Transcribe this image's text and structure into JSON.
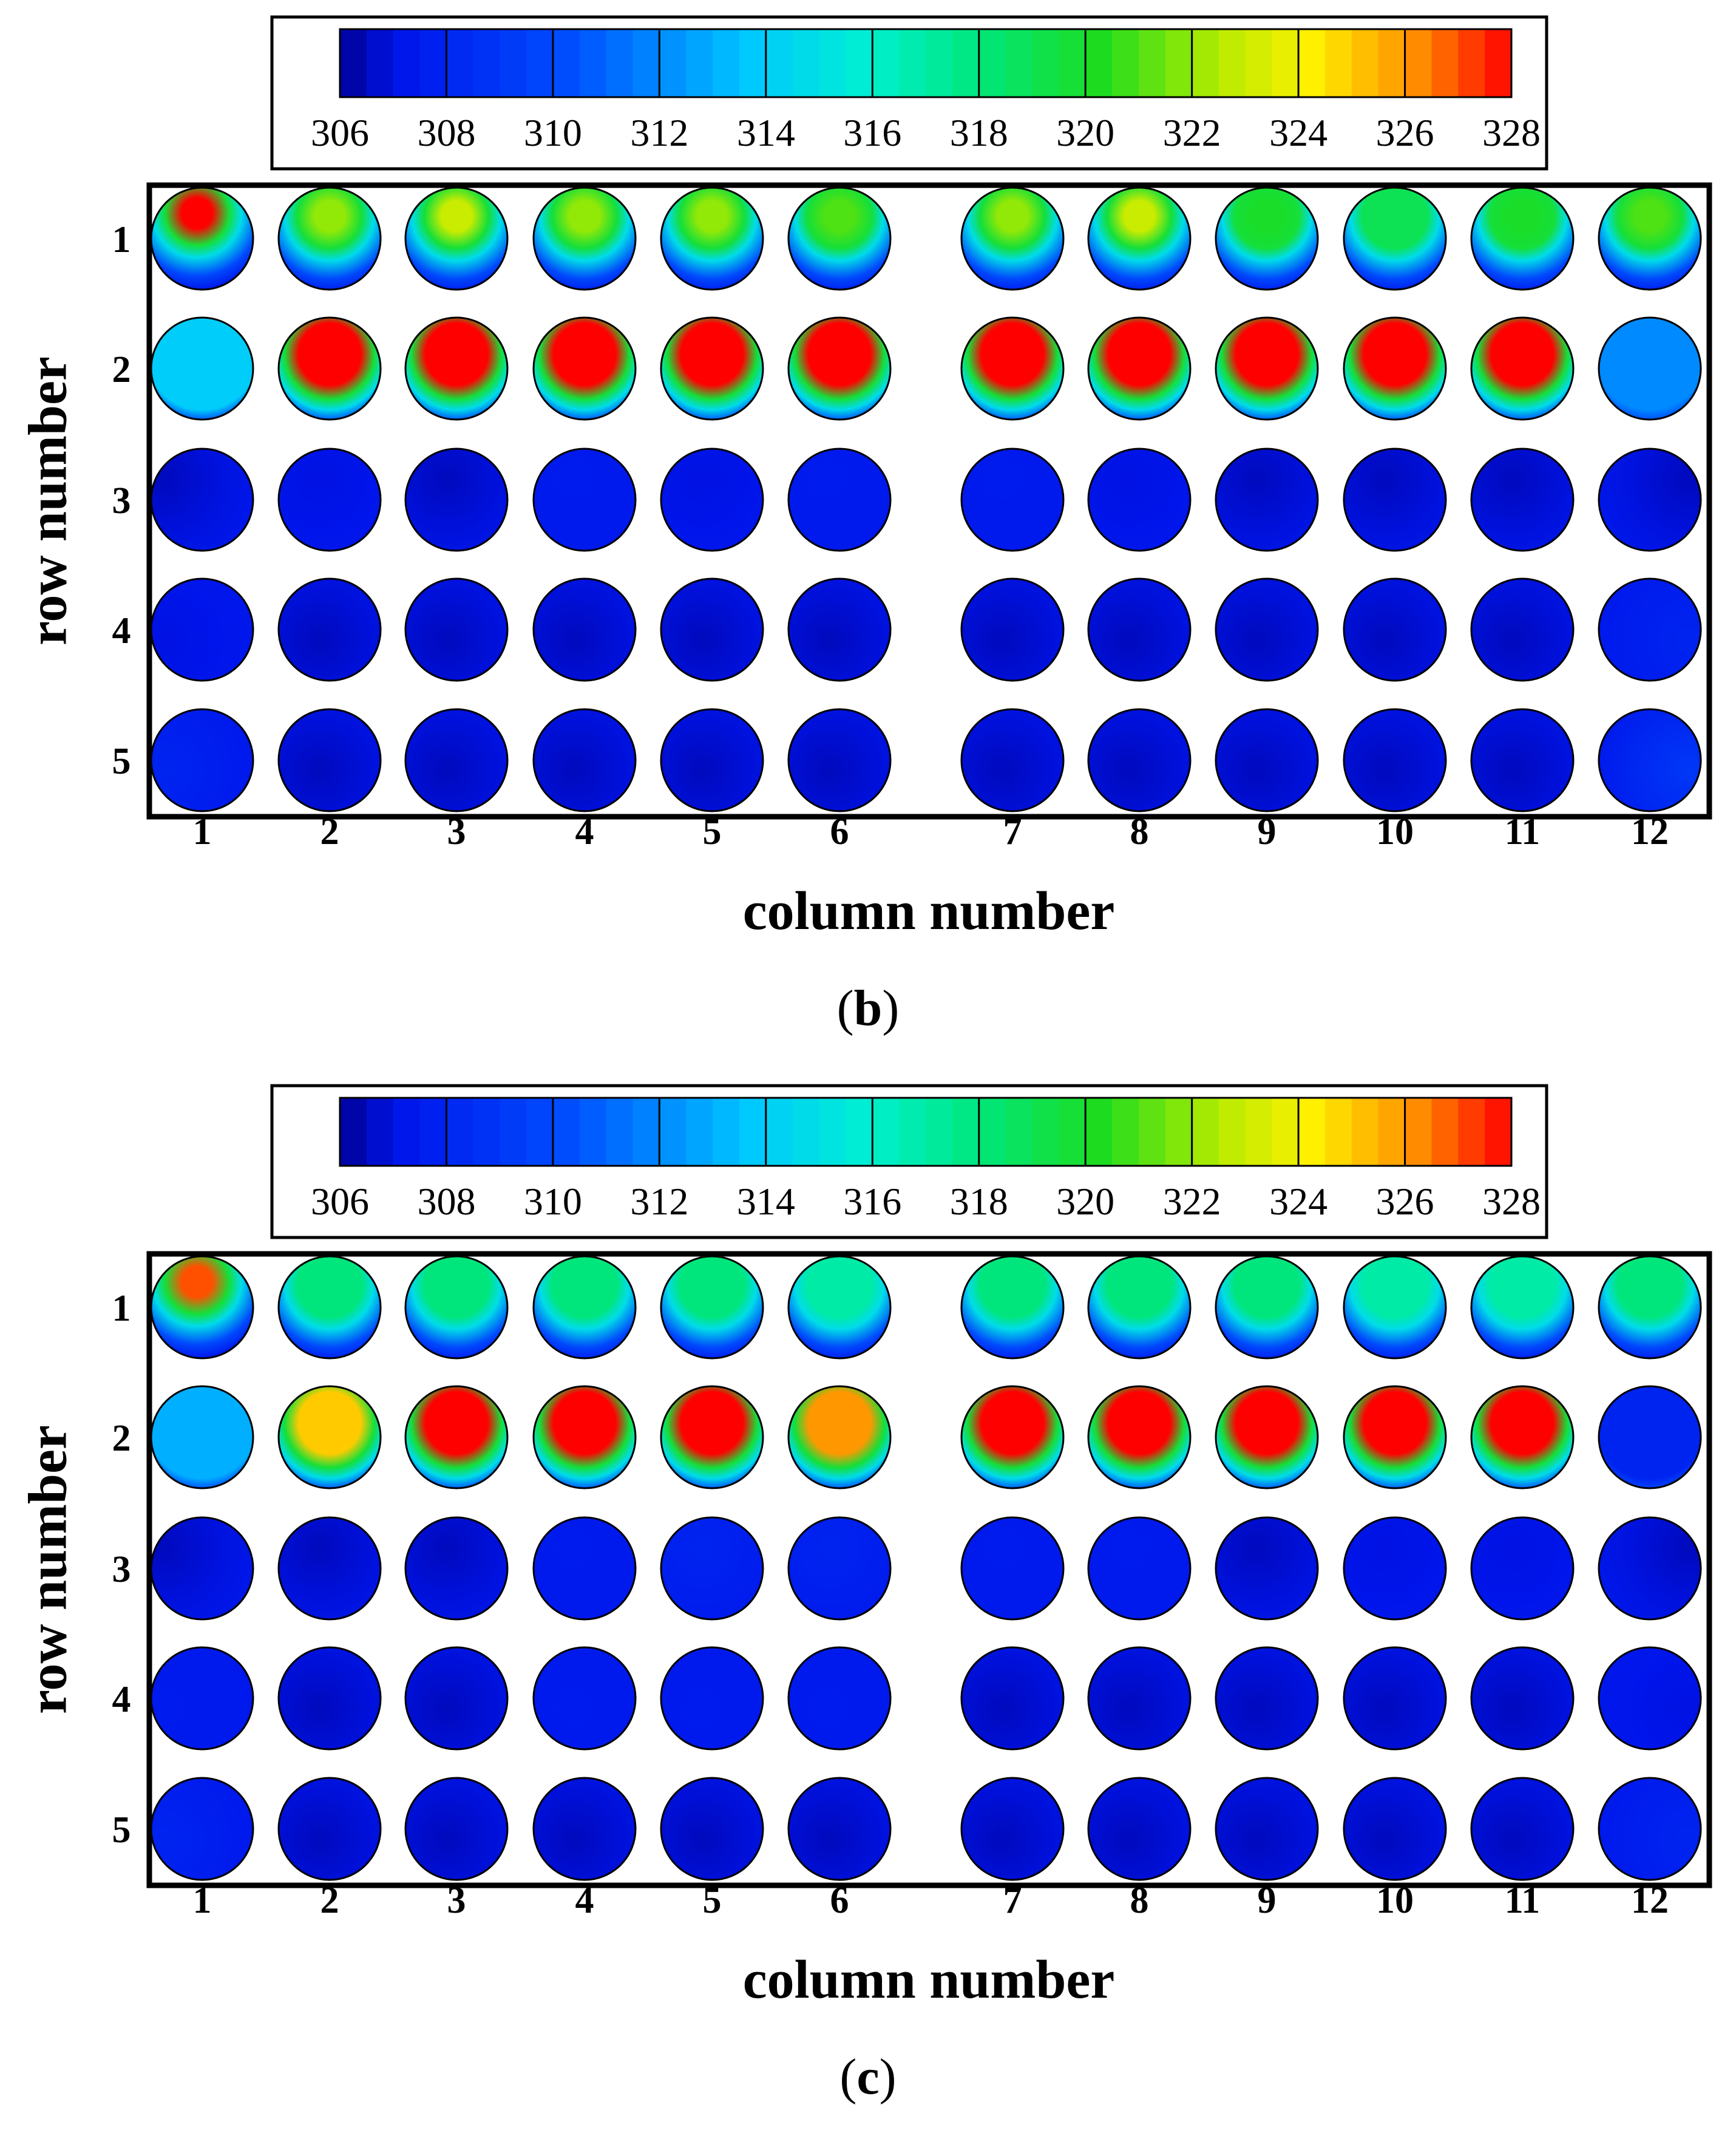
{
  "chart_data": [
    {
      "type": "heatmap",
      "panel_label": "b",
      "colorbar": {
        "ticks": [
          "306",
          "308",
          "310",
          "312",
          "314",
          "316",
          "318",
          "320",
          "322",
          "324",
          "326",
          "328"
        ],
        "min": 306,
        "max": 328
      },
      "xlabel": "column number",
      "ylabel": "row number",
      "columns": [
        "1",
        "2",
        "3",
        "4",
        "5",
        "6",
        "7",
        "8",
        "9",
        "10",
        "11",
        "12"
      ],
      "rows": [
        "1",
        "2",
        "3",
        "4",
        "5"
      ],
      "peak_temperature": [
        [
          328,
          322,
          323,
          322,
          322,
          321,
          322,
          323,
          320,
          319,
          320,
          321
        ],
        [
          314,
          328,
          328,
          328,
          328,
          328,
          328,
          328,
          328,
          328,
          328,
          312
        ],
        [
          306.5,
          307,
          306.5,
          307.5,
          307,
          307.5,
          307.5,
          307,
          306.5,
          306.5,
          306.5,
          306.5
        ],
        [
          307,
          306.5,
          306.5,
          306.5,
          306.5,
          306.5,
          306.5,
          306.5,
          306.5,
          306.5,
          306.5,
          308
        ],
        [
          308,
          306.5,
          306.5,
          306.5,
          306.5,
          306.5,
          306.5,
          306.5,
          306.5,
          306.5,
          306.5,
          309
        ]
      ]
    },
    {
      "type": "heatmap",
      "panel_label": "c",
      "colorbar": {
        "ticks": [
          "306",
          "308",
          "310",
          "312",
          "314",
          "316",
          "318",
          "320",
          "322",
          "324",
          "326",
          "328"
        ],
        "min": 306,
        "max": 328
      },
      "xlabel": "column number",
      "ylabel": "row number",
      "columns": [
        "1",
        "2",
        "3",
        "4",
        "5",
        "6",
        "7",
        "8",
        "9",
        "10",
        "11",
        "12"
      ],
      "rows": [
        "1",
        "2",
        "3",
        "4",
        "5"
      ],
      "peak_temperature": [
        [
          327,
          318,
          318,
          318,
          318,
          317,
          318,
          318,
          318,
          317,
          317,
          318
        ],
        [
          313,
          325,
          328,
          328,
          328,
          326,
          328,
          328,
          328,
          328,
          328,
          308
        ],
        [
          306.5,
          306.5,
          306.5,
          307.5,
          308,
          308,
          307.5,
          307.5,
          306.5,
          307,
          307,
          306.5
        ],
        [
          307.5,
          306.5,
          306.5,
          307.5,
          307.5,
          307.5,
          306.5,
          306.5,
          306.5,
          306.5,
          306.5,
          307
        ],
        [
          308,
          306.5,
          306.5,
          306.5,
          306.5,
          306.5,
          306.5,
          306.5,
          306.5,
          306.5,
          306.5,
          308
        ]
      ]
    }
  ]
}
